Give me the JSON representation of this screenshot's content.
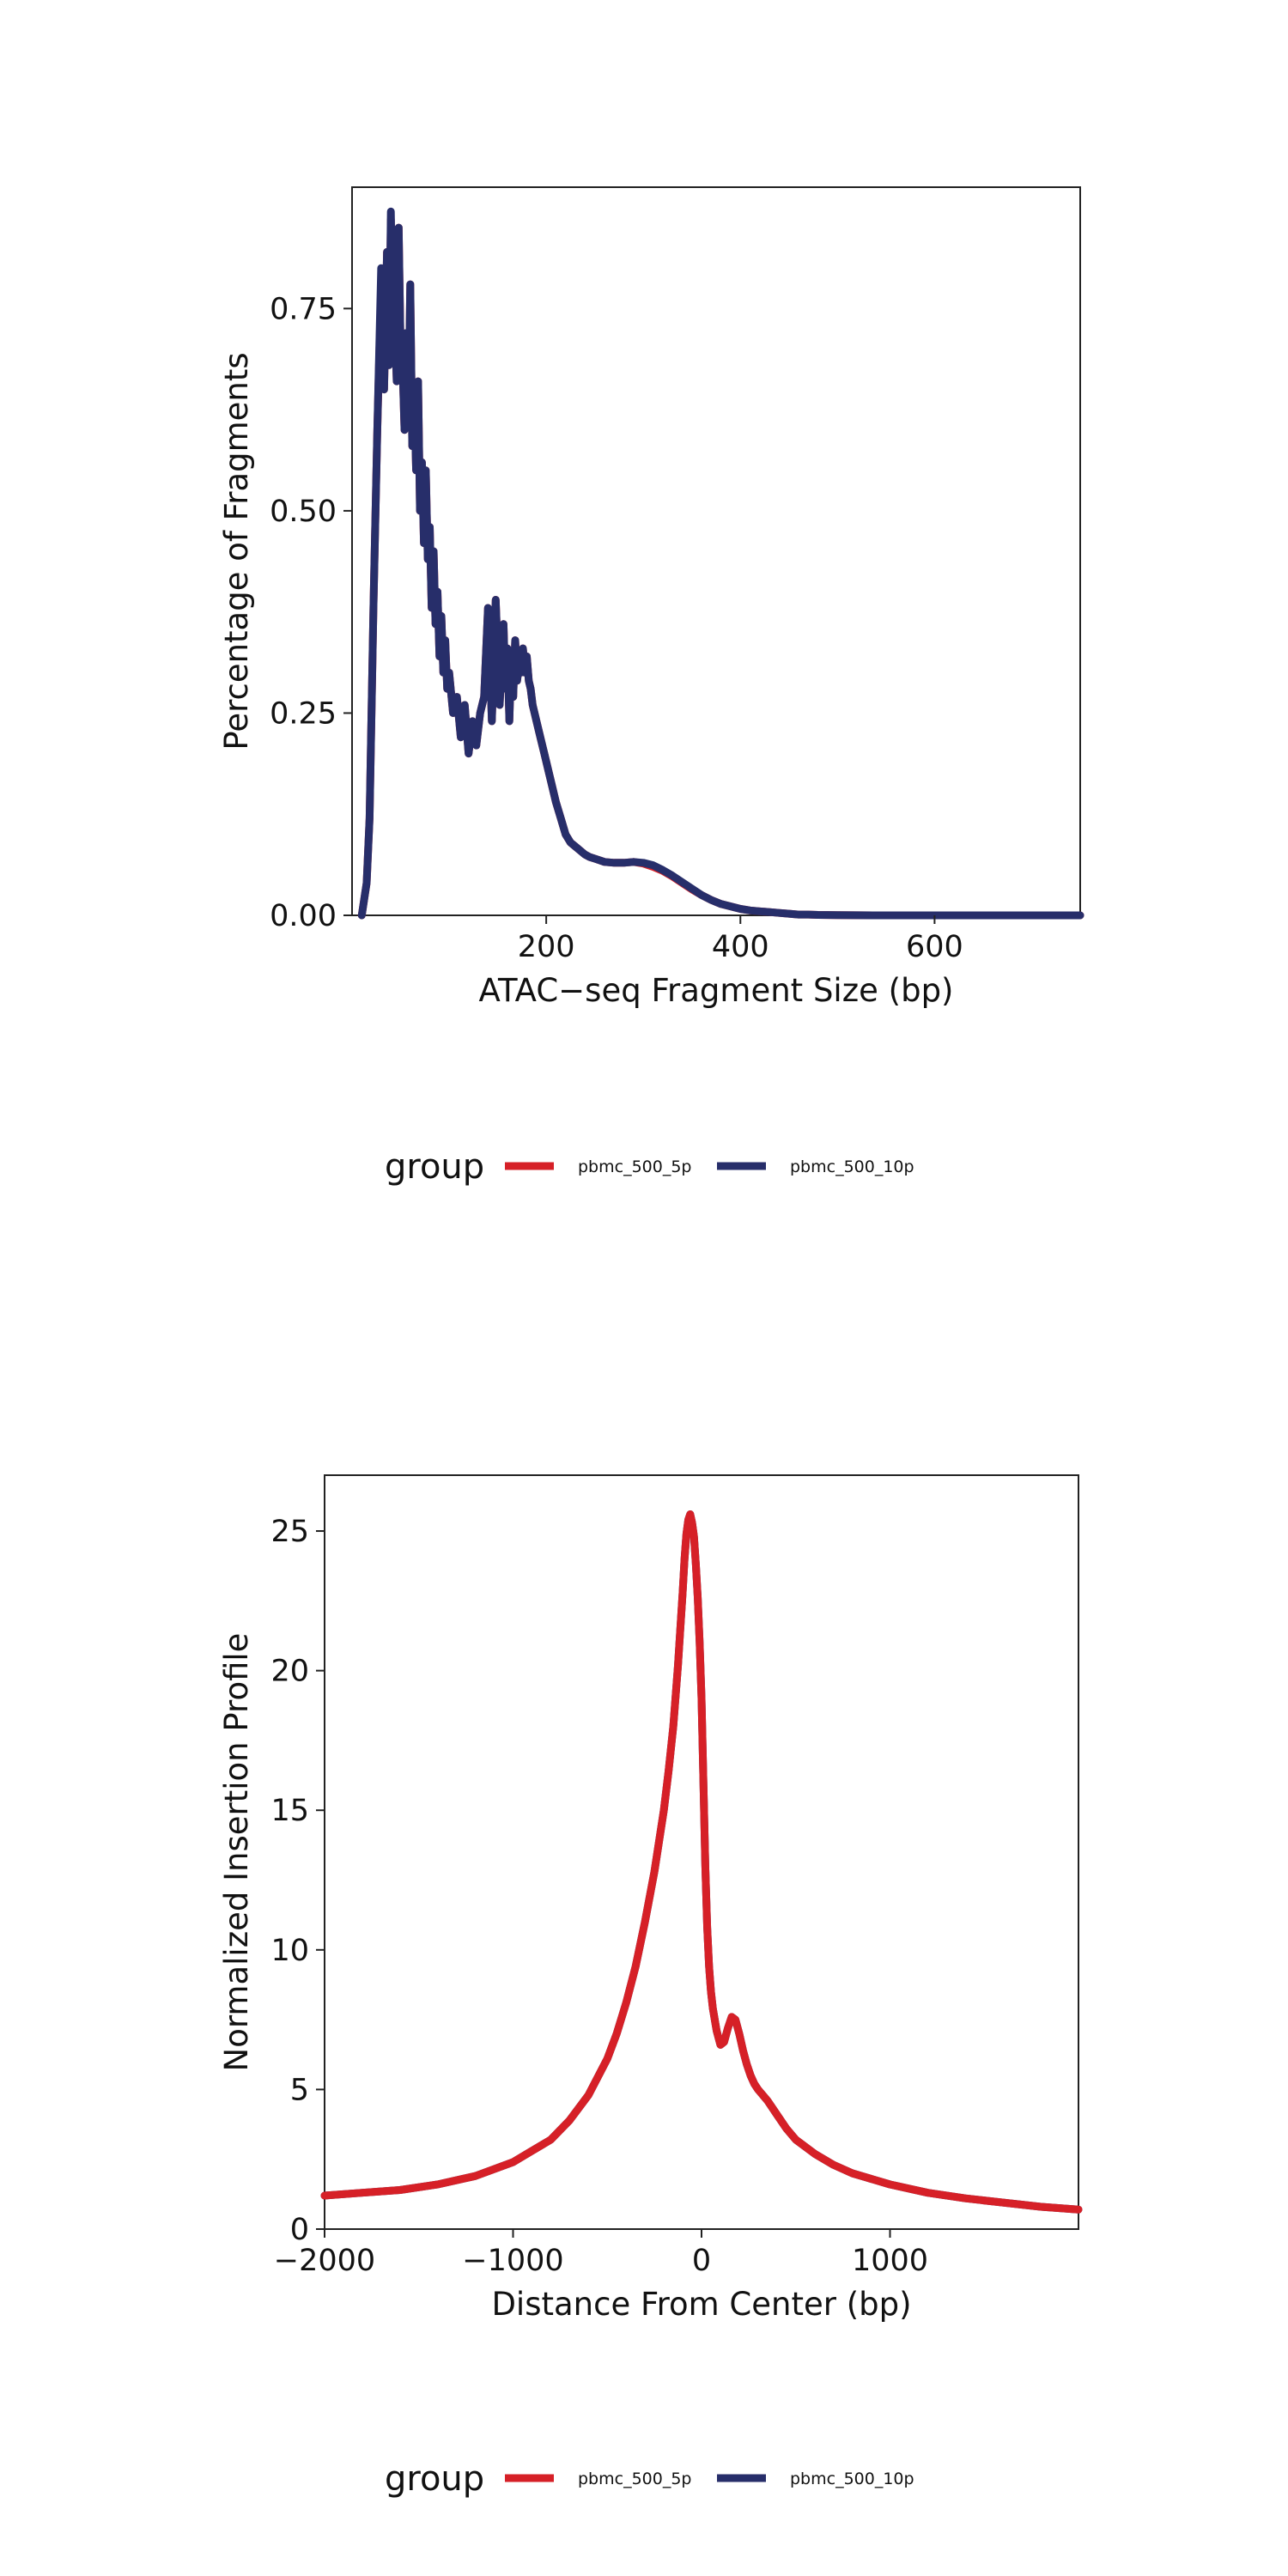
{
  "colors": {
    "pbmc_500_5p": "#d62027",
    "pbmc_500_10p": "#272e6a"
  },
  "legend": {
    "title": "group",
    "items": [
      {
        "name": "pbmc_500_5p",
        "color": "#d62027"
      },
      {
        "name": "pbmc_500_10p",
        "color": "#272e6a"
      }
    ]
  },
  "chart_data": [
    {
      "type": "line",
      "title": "",
      "xlabel": "ATAC−seq Fragment Size (bp)",
      "ylabel": "Percentage of Fragments",
      "xlim": [
        0,
        750
      ],
      "ylim": [
        0,
        0.9
      ],
      "xticks": [
        200,
        400,
        600
      ],
      "xtick_labels": [
        "200",
        "400",
        "600"
      ],
      "yticks": [
        0,
        0.25,
        0.5,
        0.75
      ],
      "ytick_labels": [
        "0.00",
        "0.25",
        "0.50",
        "0.75"
      ],
      "grid": false,
      "legend_position": "bottom",
      "series": [
        {
          "name": "pbmc_500_5p",
          "x": [
            10,
            15,
            18,
            22,
            26,
            30,
            33,
            36,
            38,
            40,
            42,
            44,
            46,
            48,
            50,
            52,
            54,
            56,
            58,
            60,
            62,
            64,
            66,
            68,
            70,
            72,
            74,
            76,
            78,
            80,
            82,
            84,
            86,
            88,
            90,
            92,
            94,
            96,
            98,
            100,
            104,
            108,
            112,
            116,
            120,
            124,
            128,
            132,
            136,
            140,
            144,
            148,
            152,
            156,
            158,
            160,
            162,
            164,
            166,
            168,
            170,
            172,
            174,
            176,
            178,
            180,
            182,
            184,
            186,
            190,
            194,
            198,
            202,
            206,
            210,
            215,
            220,
            225,
            230,
            235,
            240,
            245,
            250,
            255,
            260,
            270,
            280,
            290,
            300,
            310,
            320,
            330,
            340,
            350,
            360,
            370,
            380,
            390,
            400,
            410,
            420,
            430,
            440,
            450,
            460,
            470,
            480,
            500,
            520,
            540,
            560,
            580,
            600,
            650,
            700,
            750
          ],
          "y": [
            0.0,
            0.04,
            0.12,
            0.38,
            0.6,
            0.78,
            0.65,
            0.82,
            0.68,
            0.86,
            0.72,
            0.74,
            0.66,
            0.85,
            0.7,
            0.68,
            0.6,
            0.72,
            0.62,
            0.78,
            0.58,
            0.64,
            0.55,
            0.66,
            0.5,
            0.56,
            0.46,
            0.55,
            0.44,
            0.48,
            0.38,
            0.45,
            0.36,
            0.4,
            0.32,
            0.37,
            0.3,
            0.34,
            0.28,
            0.3,
            0.25,
            0.27,
            0.22,
            0.26,
            0.2,
            0.24,
            0.21,
            0.25,
            0.27,
            0.38,
            0.24,
            0.39,
            0.26,
            0.36,
            0.28,
            0.33,
            0.24,
            0.32,
            0.27,
            0.34,
            0.29,
            0.31,
            0.3,
            0.33,
            0.3,
            0.32,
            0.29,
            0.28,
            0.26,
            0.24,
            0.22,
            0.2,
            0.18,
            0.16,
            0.14,
            0.12,
            0.1,
            0.09,
            0.085,
            0.08,
            0.075,
            0.072,
            0.07,
            0.068,
            0.066,
            0.065,
            0.065,
            0.066,
            0.064,
            0.06,
            0.055,
            0.048,
            0.04,
            0.032,
            0.025,
            0.019,
            0.014,
            0.011,
            0.008,
            0.006,
            0.005,
            0.004,
            0.003,
            0.002,
            0.001,
            0.001,
            0.0005,
            0.0003,
            0.0001,
            0.0,
            0.0,
            0.0,
            0.0,
            0.0,
            0.0,
            0.0
          ]
        },
        {
          "name": "pbmc_500_10p",
          "x": [
            10,
            15,
            18,
            22,
            26,
            30,
            33,
            36,
            38,
            40,
            42,
            44,
            46,
            48,
            50,
            52,
            54,
            56,
            58,
            60,
            62,
            64,
            66,
            68,
            70,
            72,
            74,
            76,
            78,
            80,
            82,
            84,
            86,
            88,
            90,
            92,
            94,
            96,
            98,
            100,
            104,
            108,
            112,
            116,
            120,
            124,
            128,
            132,
            136,
            140,
            144,
            148,
            152,
            156,
            158,
            160,
            162,
            164,
            166,
            168,
            170,
            172,
            174,
            176,
            178,
            180,
            182,
            184,
            186,
            190,
            194,
            198,
            202,
            206,
            210,
            215,
            220,
            225,
            230,
            235,
            240,
            245,
            250,
            255,
            260,
            270,
            280,
            290,
            300,
            310,
            320,
            330,
            340,
            350,
            360,
            370,
            380,
            390,
            400,
            410,
            420,
            430,
            440,
            450,
            460,
            470,
            480,
            500,
            520,
            540,
            560,
            580,
            600,
            650,
            700,
            750
          ],
          "y": [
            0.0,
            0.04,
            0.12,
            0.38,
            0.6,
            0.8,
            0.65,
            0.82,
            0.68,
            0.87,
            0.72,
            0.74,
            0.66,
            0.85,
            0.7,
            0.68,
            0.6,
            0.72,
            0.62,
            0.78,
            0.58,
            0.64,
            0.55,
            0.66,
            0.5,
            0.56,
            0.46,
            0.55,
            0.44,
            0.48,
            0.38,
            0.45,
            0.36,
            0.4,
            0.32,
            0.37,
            0.3,
            0.34,
            0.28,
            0.3,
            0.25,
            0.27,
            0.22,
            0.26,
            0.2,
            0.24,
            0.21,
            0.25,
            0.27,
            0.38,
            0.24,
            0.39,
            0.26,
            0.36,
            0.28,
            0.33,
            0.24,
            0.32,
            0.27,
            0.34,
            0.29,
            0.31,
            0.3,
            0.33,
            0.3,
            0.32,
            0.29,
            0.28,
            0.26,
            0.24,
            0.22,
            0.2,
            0.18,
            0.16,
            0.14,
            0.12,
            0.1,
            0.09,
            0.085,
            0.08,
            0.075,
            0.072,
            0.07,
            0.068,
            0.066,
            0.065,
            0.065,
            0.066,
            0.065,
            0.062,
            0.056,
            0.049,
            0.041,
            0.033,
            0.025,
            0.019,
            0.014,
            0.011,
            0.008,
            0.006,
            0.005,
            0.004,
            0.003,
            0.002,
            0.001,
            0.001,
            0.0005,
            0.0003,
            0.0001,
            0.0,
            0.0,
            0.0,
            0.0,
            0.0,
            0.0,
            0.0
          ]
        }
      ]
    },
    {
      "type": "line",
      "title": "",
      "xlabel": "Distance From Center (bp)",
      "ylabel": "Normalized Insertion Profile",
      "xlim": [
        -2000,
        2000
      ],
      "ylim": [
        0,
        27
      ],
      "xticks": [
        -2000,
        -1000,
        0,
        1000
      ],
      "xtick_labels": [
        "−2000",
        "−1000",
        "0",
        "1000"
      ],
      "yticks": [
        0,
        5,
        10,
        15,
        20,
        25
      ],
      "ytick_labels": [
        "0",
        "5",
        "10",
        "15",
        "20",
        "25"
      ],
      "grid": false,
      "legend_position": "bottom",
      "series": [
        {
          "name": "pbmc_500_10p",
          "x": [
            -2000,
            -1800,
            -1600,
            -1400,
            -1200,
            -1000,
            -900,
            -800,
            -700,
            -600,
            -500,
            -450,
            -400,
            -350,
            -300,
            -250,
            -200,
            -175,
            -150,
            -125,
            -100,
            -90,
            -80,
            -70,
            -60,
            -50,
            -40,
            -30,
            -20,
            -10,
            0,
            10,
            20,
            30,
            40,
            50,
            60,
            80,
            100,
            120,
            140,
            160,
            180,
            200,
            220,
            240,
            260,
            280,
            300,
            350,
            400,
            450,
            500,
            600,
            700,
            800,
            900,
            1000,
            1200,
            1400,
            1600,
            1800,
            2000
          ],
          "y": [
            1.2,
            1.3,
            1.4,
            1.6,
            1.9,
            2.4,
            2.8,
            3.2,
            3.9,
            4.8,
            6.1,
            7.0,
            8.1,
            9.4,
            11.0,
            12.8,
            15.0,
            16.4,
            18.0,
            20.2,
            22.8,
            24.0,
            24.9,
            25.4,
            25.6,
            25.3,
            24.8,
            23.8,
            22.6,
            21.0,
            19.0,
            16.0,
            13.0,
            10.8,
            9.4,
            8.5,
            7.9,
            7.1,
            6.6,
            6.7,
            7.2,
            7.6,
            7.5,
            7.0,
            6.4,
            5.9,
            5.5,
            5.2,
            5.0,
            4.6,
            4.1,
            3.6,
            3.2,
            2.7,
            2.3,
            2.0,
            1.8,
            1.6,
            1.3,
            1.1,
            0.95,
            0.8,
            0.7
          ]
        },
        {
          "name": "pbmc_500_5p",
          "x": [
            -2000,
            -1800,
            -1600,
            -1400,
            -1200,
            -1000,
            -900,
            -800,
            -700,
            -600,
            -500,
            -450,
            -400,
            -350,
            -300,
            -250,
            -200,
            -175,
            -150,
            -125,
            -100,
            -90,
            -80,
            -70,
            -60,
            -50,
            -40,
            -30,
            -20,
            -10,
            0,
            10,
            20,
            30,
            40,
            50,
            60,
            80,
            100,
            120,
            140,
            160,
            180,
            200,
            220,
            240,
            260,
            280,
            300,
            350,
            400,
            450,
            500,
            600,
            700,
            800,
            900,
            1000,
            1200,
            1400,
            1600,
            1800,
            2000
          ],
          "y": [
            1.2,
            1.3,
            1.4,
            1.6,
            1.9,
            2.4,
            2.8,
            3.2,
            3.9,
            4.8,
            6.1,
            7.0,
            8.1,
            9.4,
            11.0,
            12.8,
            15.0,
            16.4,
            18.0,
            20.2,
            22.8,
            24.0,
            24.9,
            25.4,
            25.6,
            25.3,
            24.8,
            23.8,
            22.6,
            21.0,
            19.0,
            16.0,
            13.0,
            10.8,
            9.4,
            8.5,
            7.9,
            7.1,
            6.6,
            6.7,
            7.2,
            7.6,
            7.5,
            7.0,
            6.4,
            5.9,
            5.5,
            5.2,
            5.0,
            4.6,
            4.1,
            3.6,
            3.2,
            2.7,
            2.3,
            2.0,
            1.8,
            1.6,
            1.3,
            1.1,
            0.95,
            0.8,
            0.7
          ]
        }
      ]
    }
  ]
}
